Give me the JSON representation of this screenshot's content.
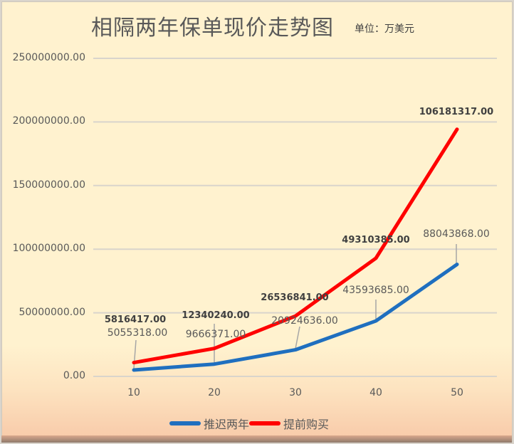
{
  "title": "相隔两年保单现价走势图",
  "subtitle": "单位：万美元",
  "colors": {
    "series_blue": "#1f6fbf",
    "series_red": "#ff0000",
    "background": "#fff2cf",
    "grid": "#d9d4cc",
    "text": "#595959"
  },
  "y_ticks": [
    "250000000.00",
    "200000000.00",
    "150000000.00",
    "100000000.00",
    "50000000.00",
    "0.00"
  ],
  "x_ticks": [
    "10",
    "20",
    "30",
    "40",
    "50"
  ],
  "legend": [
    {
      "label": "推迟两年",
      "color": "#1f6fbf"
    },
    {
      "label": "提前购买",
      "color": "#ff0000"
    }
  ],
  "labels": {
    "blue": [
      "5055318.00",
      "9666371.00",
      "20924636.00",
      "43593685.00",
      "88043868.00"
    ],
    "red": [
      "5816417.00",
      "12340240.00",
      "26536841.00",
      "49310385.00",
      "106181317.00"
    ]
  },
  "chart_data": {
    "type": "line",
    "stacked": true,
    "title": "相隔两年保单现价走势图",
    "subtitle": "单位：万美元",
    "xlabel": "",
    "ylabel": "",
    "categories": [
      10,
      20,
      30,
      40,
      50
    ],
    "series": [
      {
        "name": "推迟两年",
        "color": "#1f6fbf",
        "values": [
          5055318,
          9666371,
          20924636,
          43593685,
          88043868
        ]
      },
      {
        "name": "提前购买",
        "color": "#ff0000",
        "values": [
          5816417,
          12340240,
          26536841,
          49310385,
          106181317
        ]
      }
    ],
    "ylim": [
      0,
      250000000
    ],
    "y_tick_step": 50000000,
    "grid": true,
    "legend_position": "bottom",
    "data_labels": true
  }
}
